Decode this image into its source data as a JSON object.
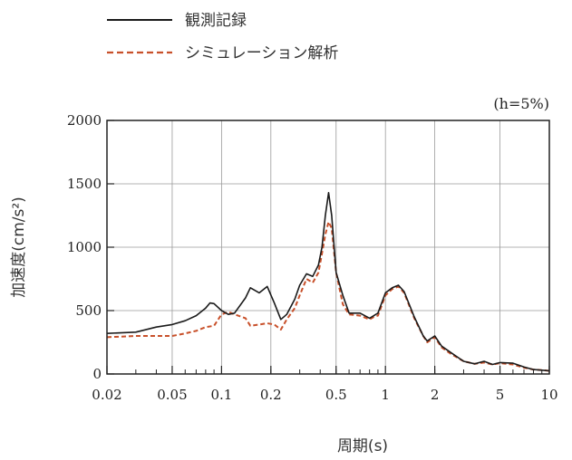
{
  "chart_data": {
    "type": "line",
    "title": "",
    "annotation": "(h=5%)",
    "xlabel": "周期(s)",
    "ylabel": "加速度(cm/s²)",
    "xscale": "log",
    "xlim": [
      0.02,
      10
    ],
    "ylim": [
      0,
      2000
    ],
    "xticks": [
      0.02,
      0.05,
      0.1,
      0.2,
      0.5,
      1,
      2,
      5,
      10
    ],
    "xtick_labels": [
      "0.02",
      "0.05",
      "0.1",
      "0.2",
      "0.5",
      "1",
      "2",
      "5",
      "10"
    ],
    "yticks": [
      0,
      500,
      1000,
      1500,
      2000
    ],
    "ytick_labels": [
      "0",
      "500",
      "1000",
      "1500",
      "2000"
    ],
    "grid": true,
    "legend_position": "top-left",
    "series": [
      {
        "name": "観測記録",
        "color": "#1a1a1a",
        "style": "solid",
        "points": [
          [
            0.02,
            320
          ],
          [
            0.03,
            330
          ],
          [
            0.04,
            370
          ],
          [
            0.05,
            390
          ],
          [
            0.06,
            420
          ],
          [
            0.07,
            460
          ],
          [
            0.08,
            520
          ],
          [
            0.085,
            560
          ],
          [
            0.09,
            555
          ],
          [
            0.1,
            500
          ],
          [
            0.11,
            470
          ],
          [
            0.12,
            480
          ],
          [
            0.14,
            600
          ],
          [
            0.15,
            680
          ],
          [
            0.17,
            640
          ],
          [
            0.19,
            690
          ],
          [
            0.21,
            560
          ],
          [
            0.23,
            430
          ],
          [
            0.25,
            470
          ],
          [
            0.28,
            590
          ],
          [
            0.3,
            700
          ],
          [
            0.33,
            790
          ],
          [
            0.36,
            770
          ],
          [
            0.39,
            860
          ],
          [
            0.41,
            1000
          ],
          [
            0.43,
            1250
          ],
          [
            0.45,
            1430
          ],
          [
            0.47,
            1250
          ],
          [
            0.5,
            800
          ],
          [
            0.55,
            620
          ],
          [
            0.6,
            480
          ],
          [
            0.7,
            480
          ],
          [
            0.8,
            440
          ],
          [
            0.85,
            460
          ],
          [
            0.9,
            480
          ],
          [
            1.0,
            640
          ],
          [
            1.1,
            680
          ],
          [
            1.2,
            700
          ],
          [
            1.3,
            650
          ],
          [
            1.5,
            450
          ],
          [
            1.7,
            300
          ],
          [
            1.8,
            260
          ],
          [
            2.0,
            300
          ],
          [
            2.2,
            220
          ],
          [
            2.5,
            170
          ],
          [
            3.0,
            100
          ],
          [
            3.5,
            80
          ],
          [
            4.0,
            100
          ],
          [
            4.5,
            75
          ],
          [
            5.0,
            90
          ],
          [
            6.0,
            85
          ],
          [
            7.0,
            55
          ],
          [
            8.0,
            35
          ],
          [
            9.0,
            30
          ],
          [
            10,
            25
          ]
        ]
      },
      {
        "name": "シミュレーション解析",
        "color": "#c8502a",
        "style": "dashed",
        "points": [
          [
            0.02,
            290
          ],
          [
            0.03,
            300
          ],
          [
            0.04,
            300
          ],
          [
            0.05,
            300
          ],
          [
            0.06,
            320
          ],
          [
            0.07,
            340
          ],
          [
            0.08,
            370
          ],
          [
            0.09,
            380
          ],
          [
            0.1,
            470
          ],
          [
            0.11,
            490
          ],
          [
            0.12,
            470
          ],
          [
            0.14,
            440
          ],
          [
            0.15,
            380
          ],
          [
            0.17,
            390
          ],
          [
            0.19,
            400
          ],
          [
            0.21,
            390
          ],
          [
            0.23,
            350
          ],
          [
            0.25,
            430
          ],
          [
            0.28,
            520
          ],
          [
            0.3,
            620
          ],
          [
            0.33,
            750
          ],
          [
            0.36,
            720
          ],
          [
            0.39,
            800
          ],
          [
            0.41,
            950
          ],
          [
            0.43,
            1100
          ],
          [
            0.45,
            1200
          ],
          [
            0.47,
            1150
          ],
          [
            0.5,
            800
          ],
          [
            0.55,
            550
          ],
          [
            0.6,
            470
          ],
          [
            0.7,
            460
          ],
          [
            0.8,
            430
          ],
          [
            0.85,
            450
          ],
          [
            0.9,
            460
          ],
          [
            1.0,
            620
          ],
          [
            1.1,
            670
          ],
          [
            1.2,
            690
          ],
          [
            1.3,
            640
          ],
          [
            1.5,
            440
          ],
          [
            1.7,
            300
          ],
          [
            1.8,
            250
          ],
          [
            2.0,
            290
          ],
          [
            2.2,
            210
          ],
          [
            2.5,
            160
          ],
          [
            3.0,
            100
          ],
          [
            3.5,
            80
          ],
          [
            4.0,
            90
          ],
          [
            4.5,
            75
          ],
          [
            5.0,
            85
          ],
          [
            6.0,
            75
          ],
          [
            7.0,
            50
          ],
          [
            8.0,
            35
          ],
          [
            9.0,
            30
          ],
          [
            10,
            25
          ]
        ]
      }
    ]
  }
}
